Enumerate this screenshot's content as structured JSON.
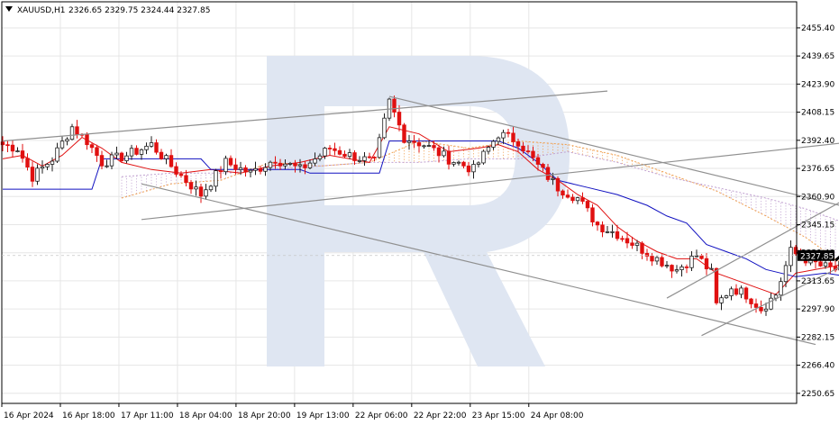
{
  "header": {
    "symbol": "XAUUSD,H1",
    "ohlc": "2326.65 2329.75 2324.44 2327.85"
  },
  "chart_data": {
    "type": "candlestick",
    "title": "XAUUSD,H1 2326.65 2329.75 2324.44 2327.85",
    "ylim": [
      2245,
      2470
    ],
    "y_ticks": [
      "2455.40",
      "2439.65",
      "2423.90",
      "2408.15",
      "2392.40",
      "2376.65",
      "2360.90",
      "2345.15",
      "2329.40",
      "2313.65",
      "2297.90",
      "2282.15",
      "2266.40",
      "2250.65"
    ],
    "x_ticks": [
      "16 Apr 2024",
      "16 Apr 18:00",
      "17 Apr 11:00",
      "18 Apr 04:00",
      "18 Apr 20:00",
      "19 Apr 13:00",
      "22 Apr 06:00",
      "22 Apr 22:00",
      "23 Apr 15:00",
      "24 Apr 08:00"
    ],
    "current_price": "2327.85",
    "grid": true,
    "colors": {
      "bull": "#1e1e1e",
      "bear": "#e01010",
      "tenkan": "#e01010",
      "kijun": "#1010c0",
      "cloud_a": "#f0a050",
      "cloud_b": "#c0a0d0",
      "channel": "#909090",
      "arrow": "#000000",
      "price_label_bg": "#000000"
    },
    "series": [
      {
        "name": "price",
        "anchors": [
          [
            0,
            2390
          ],
          [
            3,
            2388
          ],
          [
            6,
            2372
          ],
          [
            10,
            2382
          ],
          [
            14,
            2400
          ],
          [
            17,
            2392
          ],
          [
            20,
            2380
          ],
          [
            25,
            2384
          ],
          [
            30,
            2390
          ],
          [
            35,
            2375
          ],
          [
            40,
            2362
          ],
          [
            45,
            2380
          ],
          [
            50,
            2374
          ],
          [
            55,
            2382
          ],
          [
            60,
            2376
          ],
          [
            66,
            2388
          ],
          [
            70,
            2384
          ],
          [
            75,
            2380
          ],
          [
            78,
            2414
          ],
          [
            81,
            2394
          ],
          [
            85,
            2390
          ],
          [
            90,
            2382
          ],
          [
            95,
            2376
          ],
          [
            100,
            2396
          ],
          [
            104,
            2392
          ],
          [
            108,
            2378
          ],
          [
            112,
            2366
          ],
          [
            116,
            2360
          ],
          [
            120,
            2345
          ],
          [
            124,
            2340
          ],
          [
            128,
            2333
          ],
          [
            132,
            2326
          ],
          [
            136,
            2320
          ],
          [
            140,
            2328
          ],
          [
            143,
            2318
          ],
          [
            144,
            2300
          ],
          [
            147,
            2310
          ],
          [
            150,
            2306
          ],
          [
            153,
            2298
          ],
          [
            156,
            2306
          ],
          [
            159,
            2330
          ],
          [
            162,
            2326
          ],
          [
            165,
            2322
          ],
          [
            168,
            2320
          ],
          [
            171,
            2325
          ],
          [
            173,
            2328
          ]
        ]
      },
      {
        "name": "tenkan_sen",
        "points": [
          [
            0,
            2382
          ],
          [
            4,
            2384
          ],
          [
            8,
            2378
          ],
          [
            12,
            2384
          ],
          [
            16,
            2394
          ],
          [
            20,
            2388
          ],
          [
            24,
            2380
          ],
          [
            30,
            2376
          ],
          [
            36,
            2374
          ],
          [
            42,
            2376
          ],
          [
            48,
            2374
          ],
          [
            54,
            2378
          ],
          [
            60,
            2380
          ],
          [
            66,
            2384
          ],
          [
            70,
            2382
          ],
          [
            74,
            2380
          ],
          [
            78,
            2400
          ],
          [
            84,
            2396
          ],
          [
            90,
            2386
          ],
          [
            96,
            2388
          ],
          [
            100,
            2390
          ],
          [
            104,
            2386
          ],
          [
            108,
            2376
          ],
          [
            112,
            2370
          ],
          [
            116,
            2362
          ],
          [
            120,
            2356
          ],
          [
            124,
            2344
          ],
          [
            128,
            2336
          ],
          [
            132,
            2330
          ],
          [
            136,
            2326
          ],
          [
            140,
            2326
          ],
          [
            144,
            2318
          ],
          [
            148,
            2314
          ],
          [
            152,
            2310
          ],
          [
            156,
            2306
          ],
          [
            160,
            2318
          ],
          [
            164,
            2320
          ],
          [
            168,
            2322
          ],
          [
            173,
            2326
          ]
        ]
      },
      {
        "name": "kijun_sen",
        "points": [
          [
            0,
            2365
          ],
          [
            18,
            2365
          ],
          [
            20,
            2382
          ],
          [
            40,
            2382
          ],
          [
            42,
            2376
          ],
          [
            60,
            2376
          ],
          [
            62,
            2374
          ],
          [
            76,
            2374
          ],
          [
            78,
            2392
          ],
          [
            100,
            2392
          ],
          [
            104,
            2388
          ],
          [
            108,
            2380
          ],
          [
            112,
            2370
          ],
          [
            118,
            2366
          ],
          [
            124,
            2362
          ],
          [
            130,
            2356
          ],
          [
            134,
            2350
          ],
          [
            138,
            2346
          ],
          [
            142,
            2334
          ],
          [
            146,
            2330
          ],
          [
            150,
            2326
          ],
          [
            154,
            2320
          ],
          [
            160,
            2316
          ],
          [
            166,
            2318
          ],
          [
            173,
            2315
          ]
        ]
      },
      {
        "name": "senkou_a",
        "points": [
          [
            24,
            2360
          ],
          [
            34,
            2368
          ],
          [
            44,
            2370
          ],
          [
            54,
            2380
          ],
          [
            64,
            2378
          ],
          [
            74,
            2380
          ],
          [
            84,
            2392
          ],
          [
            94,
            2388
          ],
          [
            104,
            2392
          ],
          [
            114,
            2390
          ],
          [
            124,
            2384
          ],
          [
            134,
            2374
          ],
          [
            144,
            2364
          ],
          [
            154,
            2350
          ],
          [
            162,
            2338
          ],
          [
            170,
            2322
          ],
          [
            178,
            2318
          ],
          [
            186,
            2318
          ],
          [
            196,
            2318
          ]
        ]
      },
      {
        "name": "senkou_b",
        "points": [
          [
            24,
            2372
          ],
          [
            34,
            2374
          ],
          [
            44,
            2374
          ],
          [
            54,
            2376
          ],
          [
            64,
            2378
          ],
          [
            74,
            2380
          ],
          [
            84,
            2380
          ],
          [
            94,
            2382
          ],
          [
            104,
            2382
          ],
          [
            114,
            2386
          ],
          [
            124,
            2380
          ],
          [
            134,
            2372
          ],
          [
            144,
            2366
          ],
          [
            154,
            2360
          ],
          [
            162,
            2354
          ],
          [
            170,
            2346
          ],
          [
            178,
            2340
          ],
          [
            186,
            2334
          ],
          [
            196,
            2326
          ]
        ]
      }
    ],
    "annotations": [
      {
        "name": "upper-channel-line",
        "points": [
          [
            0,
            2392
          ],
          [
            122,
            2420
          ]
        ]
      },
      {
        "name": "lower-channel-line",
        "points": [
          [
            28,
            2348
          ],
          [
            173,
            2392
          ]
        ]
      },
      {
        "name": "descending-upper-line",
        "points": [
          [
            78,
            2417
          ],
          [
            209,
            2329
          ]
        ]
      },
      {
        "name": "descending-lower-line",
        "points": [
          [
            28,
            2368
          ],
          [
            164,
            2278
          ]
        ]
      },
      {
        "name": "ascending-channel-upper",
        "points": [
          [
            134,
            2304
          ],
          [
            173,
            2364
          ]
        ]
      },
      {
        "name": "ascending-channel-lower",
        "points": [
          [
            141,
            2283
          ],
          [
            192,
            2353
          ]
        ]
      },
      {
        "name": "arrow-up",
        "points": [
          [
            168,
            2325
          ],
          [
            175,
            2342
          ]
        ]
      },
      {
        "name": "arrow-down",
        "points": [
          [
            175,
            2342
          ],
          [
            188,
            2268
          ]
        ]
      }
    ]
  }
}
